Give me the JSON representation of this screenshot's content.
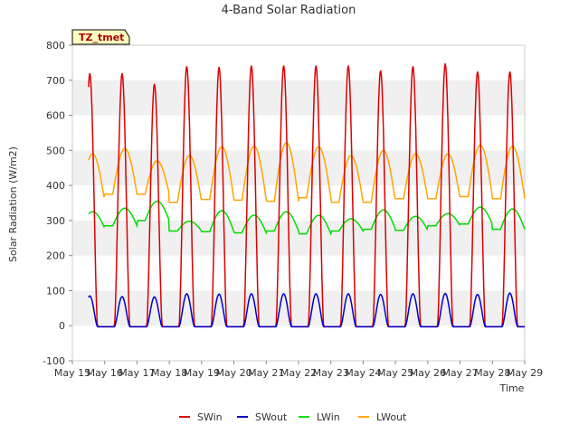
{
  "chart_data": {
    "type": "line",
    "title": "4-Band Solar Radiation",
    "xlabel": "Time",
    "ylabel": "Solar Radiation (W/m2)",
    "ylim": [
      -100,
      800
    ],
    "yticks": [
      -100,
      0,
      100,
      200,
      300,
      400,
      500,
      600,
      700,
      800
    ],
    "xlim": [
      "May 15",
      "May 29"
    ],
    "xticks": [
      "May 15",
      "May 16",
      "May 17",
      "May 18",
      "May 19",
      "May 20",
      "May 21",
      "May 22",
      "May 23",
      "May 24",
      "May 25",
      "May 26",
      "May 27",
      "May 28",
      "May 29"
    ],
    "grid": "horizontal bands",
    "legend_position": "bottom",
    "site_label": "TZ_tmet",
    "day_x": [
      "May 15",
      "May 16",
      "May 17",
      "May 18",
      "May 19",
      "May 20",
      "May 21",
      "May 22",
      "May 23",
      "May 24",
      "May 25",
      "May 26",
      "May 27",
      "May 28"
    ],
    "daily": {
      "SWin_peak": [
        720,
        720,
        690,
        740,
        738,
        742,
        742,
        742,
        742,
        728,
        740,
        748,
        725,
        725
      ],
      "SWout_peak": [
        85,
        83,
        82,
        91,
        90,
        91,
        91,
        91,
        91,
        89,
        91,
        92,
        89,
        93
      ],
      "LWin_peak": [
        325,
        335,
        355,
        298,
        328,
        315,
        325,
        315,
        305,
        330,
        312,
        320,
        338,
        333
      ],
      "LWin_night": [
        278,
        285,
        300,
        270,
        268,
        265,
        270,
        262,
        270,
        275,
        272,
        285,
        290,
        275
      ],
      "LWout_peak": [
        490,
        505,
        470,
        485,
        510,
        512,
        522,
        510,
        485,
        500,
        490,
        490,
        515,
        512
      ],
      "LWout_night": [
        355,
        375,
        375,
        352,
        360,
        358,
        355,
        365,
        352,
        352,
        362,
        362,
        368,
        362
      ]
    },
    "series": [
      {
        "name": "SWin",
        "color": "#dd0000"
      },
      {
        "name": "SWout",
        "color": "#0000cc"
      },
      {
        "name": "LWin",
        "color": "#00dd00"
      },
      {
        "name": "LWout",
        "color": "#ffa500"
      }
    ]
  }
}
